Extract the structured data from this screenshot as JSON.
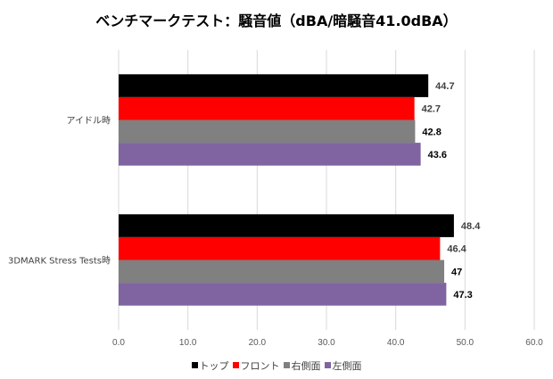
{
  "chart_data": {
    "type": "bar",
    "orientation": "horizontal",
    "title": "ベンチマークテスト：騒音値（dBA/暗騒音41.0dBA）",
    "categories": [
      "アイドル時",
      "3DMARK Stress Tests時"
    ],
    "series": [
      {
        "name": "トップ",
        "color": "#000000",
        "label_color": "#404040",
        "values": [
          44.7,
          48.4
        ]
      },
      {
        "name": "フロント",
        "color": "#ff0000",
        "label_color": "#404040",
        "values": [
          42.7,
          46.4
        ]
      },
      {
        "name": "右側面",
        "color": "#808080",
        "label_color": "#000000",
        "values": [
          42.8,
          47
        ]
      },
      {
        "name": "左側面",
        "color": "#8064a2",
        "label_color": "#000000",
        "values": [
          43.6,
          47.3
        ]
      }
    ],
    "xlim": [
      0,
      60
    ],
    "xticks": [
      "0.0",
      "10.0",
      "20.0",
      "30.0",
      "40.0",
      "50.0",
      "60.0"
    ],
    "grid": true,
    "legend_position": "bottom"
  }
}
